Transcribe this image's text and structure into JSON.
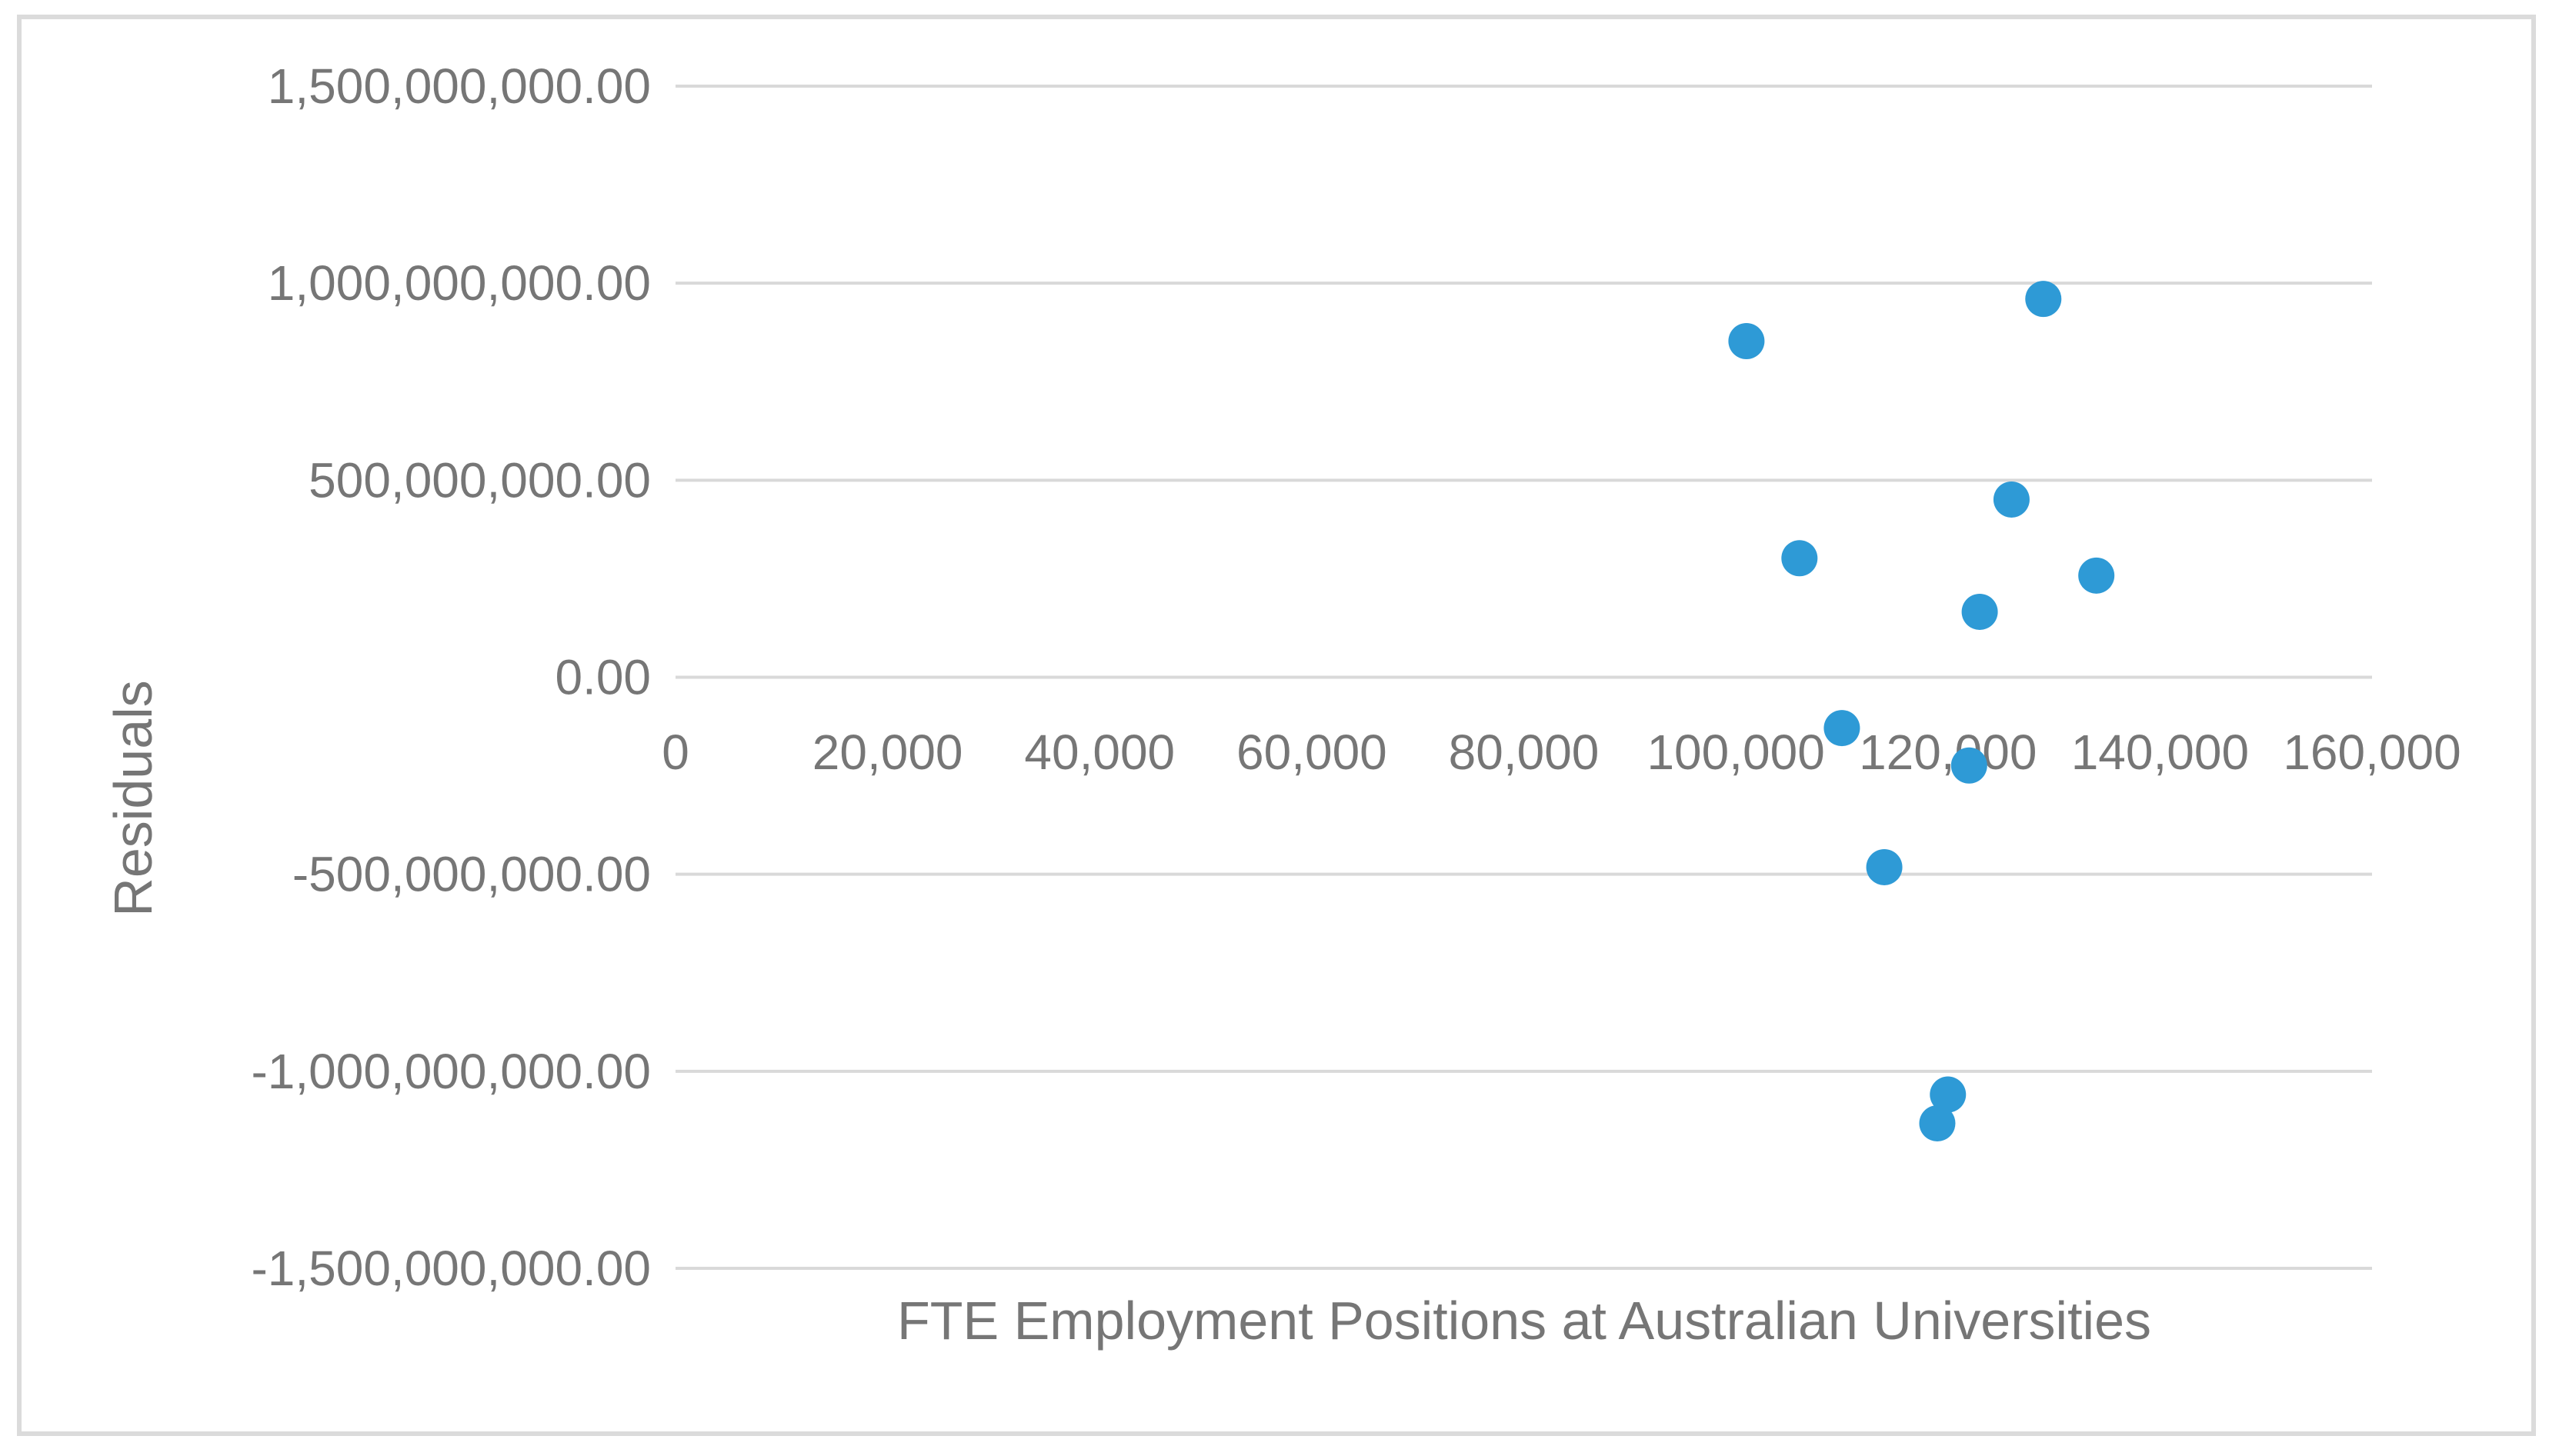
{
  "chart_data": {
    "type": "scatter",
    "title": "",
    "xlabel": "FTE Employment Positions at Australian Universities",
    "ylabel": "Residuals",
    "xlim": [
      0,
      160000
    ],
    "ylim": [
      -1500000000,
      1500000000
    ],
    "grid": "horizontal-only",
    "legend": "none",
    "x_ticks": [
      {
        "value": 0,
        "label": "0"
      },
      {
        "value": 20000,
        "label": "20,000"
      },
      {
        "value": 40000,
        "label": "40,000"
      },
      {
        "value": 60000,
        "label": "60,000"
      },
      {
        "value": 80000,
        "label": "80,000"
      },
      {
        "value": 100000,
        "label": "100,000"
      },
      {
        "value": 120000,
        "label": "120,000"
      },
      {
        "value": 140000,
        "label": "140,000"
      },
      {
        "value": 160000,
        "label": "160,000"
      }
    ],
    "y_ticks": [
      {
        "value": 1500000000,
        "label": "1,500,000,000.00"
      },
      {
        "value": 1000000000,
        "label": "1,000,000,000.00"
      },
      {
        "value": 500000000,
        "label": "500,000,000.00"
      },
      {
        "value": 0,
        "label": "0.00"
      },
      {
        "value": -500000000,
        "label": "-500,000,000.00"
      },
      {
        "value": -1000000000,
        "label": "-1,000,000,000.00"
      },
      {
        "value": -1500000000,
        "label": "-1,500,000,000.00"
      }
    ],
    "series": [
      {
        "name": "Residuals",
        "points": [
          {
            "x": 101000,
            "y": 853000000
          },
          {
            "x": 106000,
            "y": 302000000
          },
          {
            "x": 110000,
            "y": -129000000
          },
          {
            "x": 114000,
            "y": -482000000
          },
          {
            "x": 119000,
            "y": -1132000000
          },
          {
            "x": 120000,
            "y": -1059000000
          },
          {
            "x": 122000,
            "y": -224000000
          },
          {
            "x": 123000,
            "y": 166000000
          },
          {
            "x": 126000,
            "y": 451000000
          },
          {
            "x": 129000,
            "y": 960000000
          },
          {
            "x": 134000,
            "y": 258000000
          }
        ]
      }
    ],
    "colors": {
      "marker": "#2E9AD6",
      "gridline": "#D9D9D9",
      "tick_text": "#767676",
      "title_text": "#767676",
      "frame_border": "#DBDBDB",
      "background": "#FFFFFF"
    }
  }
}
